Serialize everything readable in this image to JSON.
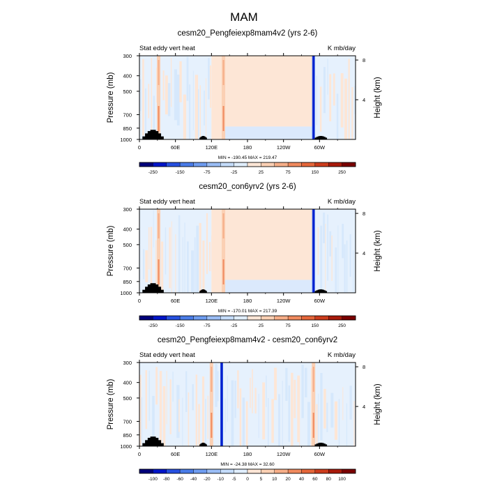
{
  "page_title": "MAM",
  "chart_data": [
    {
      "type": "heatmap",
      "title": "cesm20_Pengfeiexp8mam4v2 (yrs 2-6)",
      "left_label": "Stat eddy vert heat",
      "right_label": "K mb/day",
      "ylabel": "Pressure (mb)",
      "y2label": "Height (km)",
      "x_ticks": [
        "0",
        "60E",
        "120E",
        "180",
        "120W",
        "60W"
      ],
      "x_tick_lon": [
        0,
        60,
        120,
        180,
        240,
        300
      ],
      "x_range": [
        0,
        360
      ],
      "y_ticks": [
        "300",
        "400",
        "500",
        "700",
        "850",
        "1000"
      ],
      "y_tick_mb": [
        300,
        400,
        500,
        700,
        850,
        1000
      ],
      "y_range_mb": [
        300,
        1000
      ],
      "y2_ticks": [
        "8",
        "4"
      ],
      "y2_tick_km": [
        8,
        4
      ],
      "stats": "MIN = -190.45   MAX = 219.47",
      "min": -190.45,
      "max": 219.47,
      "colorbar_labels": [
        "-250",
        "-150",
        "-75",
        "-25",
        "25",
        "75",
        "150",
        "250"
      ],
      "colorbar_colors": [
        "#00007a",
        "#0015c8",
        "#2650e0",
        "#4a7ce8",
        "#6e9cf0",
        "#9abdf5",
        "#c4dcfa",
        "#e0eefd",
        "#fde6d6",
        "#fbd0b4",
        "#f6ae88",
        "#f08a5e",
        "#e5663a",
        "#cc3c1c",
        "#a81a0b",
        "#7a0000"
      ],
      "fields": {
        "background_lon_ranges": [
          {
            "from": 0,
            "to": 120,
            "sign": "mixed"
          },
          {
            "from": 120,
            "to": 290,
            "sign": "positive"
          },
          {
            "from": 290,
            "to": 360,
            "sign": "mixed"
          }
        ],
        "extremes_lon": [
          {
            "lon": 32,
            "sign": "positive"
          },
          {
            "lon": 140,
            "sign": "positive"
          },
          {
            "lon": 290,
            "sign": "negative"
          }
        ],
        "topography_lon": [
          [
            5,
            40
          ],
          [
            100,
            112
          ],
          [
            292,
            312
          ]
        ]
      }
    },
    {
      "type": "heatmap",
      "title": "cesm20_con6yrv2 (yrs 2-6)",
      "left_label": "Stat eddy vert heat",
      "right_label": "K mb/day",
      "ylabel": "Pressure (mb)",
      "y2label": "Height (km)",
      "x_ticks": [
        "0",
        "60E",
        "120E",
        "180",
        "120W",
        "60W"
      ],
      "x_tick_lon": [
        0,
        60,
        120,
        180,
        240,
        300
      ],
      "x_range": [
        0,
        360
      ],
      "y_ticks": [
        "300",
        "400",
        "500",
        "700",
        "850",
        "1000"
      ],
      "y_tick_mb": [
        300,
        400,
        500,
        700,
        850,
        1000
      ],
      "y_range_mb": [
        300,
        1000
      ],
      "y2_ticks": [
        "8",
        "4"
      ],
      "y2_tick_km": [
        8,
        4
      ],
      "stats": "MIN = -170.01   MAX = 217.39",
      "min": -170.01,
      "max": 217.39,
      "colorbar_labels": [
        "-250",
        "-150",
        "-75",
        "-25",
        "25",
        "75",
        "150",
        "250"
      ],
      "colorbar_colors": [
        "#00007a",
        "#0015c8",
        "#2650e0",
        "#4a7ce8",
        "#6e9cf0",
        "#9abdf5",
        "#c4dcfa",
        "#e0eefd",
        "#fde6d6",
        "#fbd0b4",
        "#f6ae88",
        "#f08a5e",
        "#e5663a",
        "#cc3c1c",
        "#a81a0b",
        "#7a0000"
      ],
      "fields": {
        "background_lon_ranges": [
          {
            "from": 0,
            "to": 120,
            "sign": "mixed"
          },
          {
            "from": 120,
            "to": 290,
            "sign": "positive"
          },
          {
            "from": 290,
            "to": 360,
            "sign": "mixed"
          }
        ],
        "extremes_lon": [
          {
            "lon": 32,
            "sign": "positive"
          },
          {
            "lon": 140,
            "sign": "positive"
          },
          {
            "lon": 290,
            "sign": "negative"
          }
        ],
        "topography_lon": [
          [
            5,
            40
          ],
          [
            100,
            112
          ],
          [
            292,
            312
          ]
        ]
      }
    },
    {
      "type": "heatmap",
      "title": "cesm20_Pengfeiexp8mam4v2 - cesm20_con6yrv2",
      "left_label": "Stat eddy vert heat",
      "right_label": "K mb/day",
      "ylabel": "Pressure (mb)",
      "y2label": "Height (km)",
      "x_ticks": [
        "0",
        "60E",
        "120E",
        "180",
        "120W",
        "60W"
      ],
      "x_tick_lon": [
        0,
        60,
        120,
        180,
        240,
        300
      ],
      "x_range": [
        0,
        360
      ],
      "y_ticks": [
        "300",
        "400",
        "500",
        "700",
        "850",
        "1000"
      ],
      "y_tick_mb": [
        300,
        400,
        500,
        700,
        850,
        1000
      ],
      "y_range_mb": [
        300,
        1000
      ],
      "y2_ticks": [
        "8",
        "4"
      ],
      "y2_tick_km": [
        8,
        4
      ],
      "stats": "MIN = -24.38   MAX = 32.60",
      "min": -24.38,
      "max": 32.6,
      "colorbar_labels": [
        "-100",
        "-80",
        "-60",
        "-40",
        "-20",
        "-10",
        "-5",
        "0",
        "5",
        "10",
        "20",
        "40",
        "60",
        "80",
        "100"
      ],
      "colorbar_colors": [
        "#00007a",
        "#0015c8",
        "#2650e0",
        "#4a7ce8",
        "#6e9cf0",
        "#9abdf5",
        "#c4dcfa",
        "#e0eefd",
        "#fde6d6",
        "#fbd0b4",
        "#f6ae88",
        "#f08a5e",
        "#e5663a",
        "#cc3c1c",
        "#a81a0b",
        "#7a0000"
      ],
      "fields": {
        "background_lon_ranges": [
          {
            "from": 0,
            "to": 360,
            "sign": "mixed"
          }
        ],
        "extremes_lon": [
          {
            "lon": 120,
            "sign": "positive"
          },
          {
            "lon": 137,
            "sign": "negative"
          },
          {
            "lon": 290,
            "sign": "positive"
          }
        ],
        "topography_lon": [
          [
            5,
            40
          ],
          [
            100,
            112
          ],
          [
            292,
            312
          ]
        ]
      }
    }
  ]
}
